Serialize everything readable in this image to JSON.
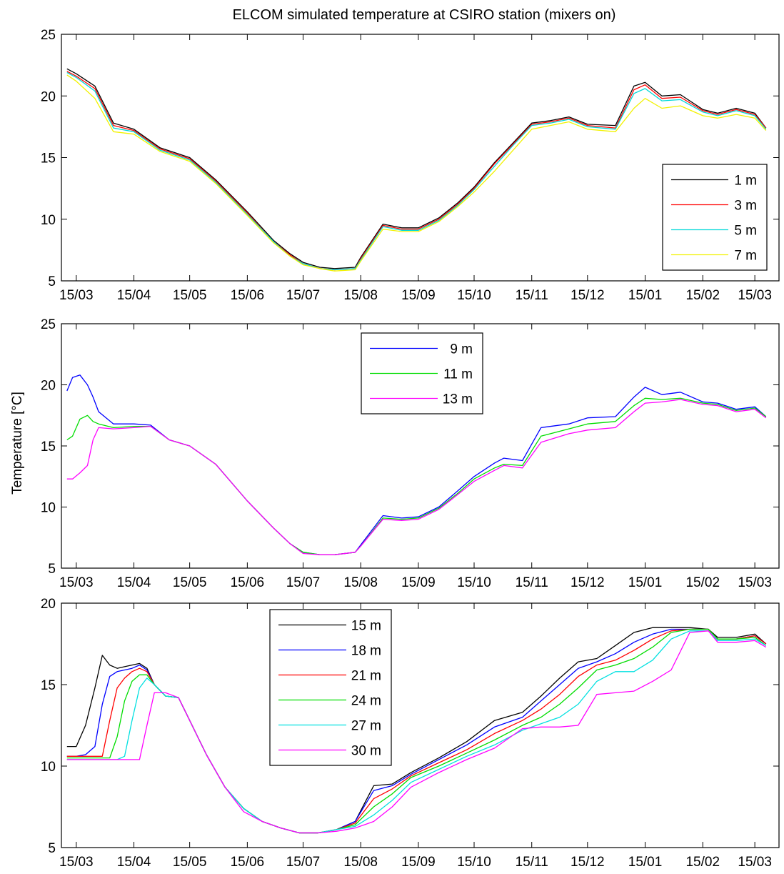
{
  "figure_title": "ELCOM simulated temperature at CSIRO station (mixers on)",
  "ylabel": "Temperature [°C]",
  "chart_data": [
    {
      "type": "line",
      "x_tick_labels": [
        "15/03",
        "15/04",
        "15/05",
        "15/06",
        "15/07",
        "15/08",
        "15/09",
        "15/10",
        "15/11",
        "15/12",
        "15/01",
        "15/02",
        "15/03"
      ],
      "x_tick_days": [
        0,
        31,
        61,
        92,
        122,
        153,
        184,
        214,
        245,
        275,
        306,
        337,
        365
      ],
      "xlim": [
        -8,
        378
      ],
      "ylim": [
        5,
        25
      ],
      "yticks": [
        5,
        10,
        15,
        20,
        25
      ],
      "legend_position": "right",
      "x": [
        -5,
        0,
        10,
        20,
        31,
        45,
        61,
        75,
        92,
        106,
        115,
        122,
        131,
        139,
        150,
        153,
        165,
        175,
        184,
        195,
        205,
        214,
        225,
        235,
        245,
        255,
        265,
        275,
        290,
        300,
        306,
        315,
        325,
        337,
        345,
        355,
        365,
        371
      ],
      "series": [
        {
          "name": "1 m",
          "color": "#000000",
          "values": [
            22.2,
            21.8,
            20.8,
            17.8,
            17.3,
            15.8,
            15.0,
            13.2,
            10.6,
            8.3,
            7.2,
            6.5,
            6.1,
            6.0,
            6.1,
            6.9,
            9.6,
            9.3,
            9.3,
            10.1,
            11.3,
            12.6,
            14.6,
            16.2,
            17.8,
            18.0,
            18.3,
            17.7,
            17.6,
            20.8,
            21.1,
            20.0,
            20.1,
            18.9,
            18.6,
            19.0,
            18.6,
            17.4
          ]
        },
        {
          "name": "3 m",
          "color": "#ff0000",
          "values": [
            22.0,
            21.6,
            20.6,
            17.6,
            17.2,
            15.7,
            14.9,
            13.1,
            10.5,
            8.2,
            7.1,
            6.4,
            6.0,
            5.9,
            6.0,
            6.8,
            9.5,
            9.2,
            9.2,
            10.0,
            11.2,
            12.5,
            14.5,
            16.1,
            17.7,
            17.9,
            18.2,
            17.6,
            17.4,
            20.5,
            20.9,
            19.8,
            19.9,
            18.8,
            18.5,
            18.9,
            18.5,
            17.4
          ]
        },
        {
          "name": "5 m",
          "color": "#00d8d8",
          "values": [
            21.9,
            21.5,
            20.4,
            17.4,
            17.1,
            15.6,
            14.8,
            13.0,
            10.4,
            8.2,
            7.0,
            6.4,
            6.0,
            5.9,
            6.0,
            6.7,
            9.4,
            9.1,
            9.1,
            9.9,
            11.1,
            12.4,
            14.3,
            16.0,
            17.6,
            17.8,
            18.1,
            17.5,
            17.3,
            20.2,
            20.6,
            19.6,
            19.7,
            18.7,
            18.4,
            18.8,
            18.4,
            17.3
          ]
        },
        {
          "name": "7 m",
          "color": "#f2f200",
          "values": [
            21.7,
            21.2,
            19.8,
            17.1,
            16.9,
            15.5,
            14.7,
            12.9,
            10.3,
            8.1,
            7.0,
            6.3,
            6.0,
            5.8,
            5.9,
            6.6,
            9.2,
            9.0,
            9.0,
            9.8,
            11.0,
            12.2,
            13.9,
            15.6,
            17.3,
            17.6,
            17.9,
            17.3,
            17.1,
            19.0,
            19.8,
            19.0,
            19.2,
            18.4,
            18.2,
            18.5,
            18.2,
            17.2
          ]
        }
      ]
    },
    {
      "type": "line",
      "x_tick_labels": [
        "15/03",
        "15/04",
        "15/05",
        "15/06",
        "15/07",
        "15/08",
        "15/09",
        "15/10",
        "15/11",
        "15/12",
        "15/01",
        "15/02",
        "15/03"
      ],
      "x_tick_days": [
        0,
        31,
        61,
        92,
        122,
        153,
        184,
        214,
        245,
        275,
        306,
        337,
        365
      ],
      "xlim": [
        -8,
        378
      ],
      "ylim": [
        5,
        25
      ],
      "yticks": [
        5,
        10,
        15,
        20,
        25
      ],
      "legend_position": "top-center",
      "x": [
        -5,
        -2,
        2,
        6,
        9,
        12,
        20,
        31,
        40,
        50,
        61,
        75,
        92,
        106,
        115,
        122,
        131,
        139,
        150,
        153,
        165,
        175,
        184,
        195,
        205,
        214,
        225,
        230,
        240,
        250,
        265,
        275,
        290,
        300,
        306,
        315,
        325,
        337,
        345,
        355,
        365,
        371
      ],
      "series": [
        {
          "name": "9 m",
          "color": "#0000ff",
          "values": [
            19.5,
            20.6,
            20.8,
            20.0,
            19.0,
            17.8,
            16.8,
            16.8,
            16.7,
            15.5,
            15.0,
            13.5,
            10.5,
            8.3,
            7.0,
            6.3,
            6.1,
            6.1,
            6.3,
            6.9,
            9.3,
            9.1,
            9.2,
            10.0,
            11.3,
            12.5,
            13.6,
            14.0,
            13.8,
            16.5,
            16.8,
            17.3,
            17.4,
            19.0,
            19.8,
            19.2,
            19.4,
            18.6,
            18.5,
            18.0,
            18.2,
            17.4
          ]
        },
        {
          "name": "11 m",
          "color": "#00dd00",
          "values": [
            15.5,
            15.8,
            17.2,
            17.5,
            17.0,
            16.8,
            16.5,
            16.6,
            16.6,
            15.5,
            15.0,
            13.5,
            10.5,
            8.3,
            7.0,
            6.3,
            6.1,
            6.1,
            6.3,
            6.8,
            9.1,
            9.0,
            9.1,
            9.9,
            11.1,
            12.3,
            13.2,
            13.5,
            13.4,
            15.8,
            16.4,
            16.8,
            17.0,
            18.3,
            18.9,
            18.8,
            18.9,
            18.5,
            18.4,
            17.9,
            18.1,
            17.4
          ]
        },
        {
          "name": "13 m",
          "color": "#ff00ff",
          "values": [
            12.3,
            12.3,
            12.8,
            13.4,
            15.5,
            16.5,
            16.4,
            16.5,
            16.6,
            15.5,
            15.0,
            13.5,
            10.5,
            8.3,
            7.0,
            6.2,
            6.1,
            6.1,
            6.3,
            6.8,
            9.0,
            8.9,
            9.0,
            9.8,
            11.0,
            12.1,
            13.0,
            13.4,
            13.2,
            15.3,
            16.0,
            16.3,
            16.5,
            17.8,
            18.5,
            18.6,
            18.8,
            18.4,
            18.3,
            17.8,
            18.0,
            17.3
          ]
        }
      ]
    },
    {
      "type": "line",
      "x_tick_labels": [
        "15/03",
        "15/04",
        "15/05",
        "15/06",
        "15/07",
        "15/08",
        "15/09",
        "15/10",
        "15/11",
        "15/12",
        "15/01",
        "15/02",
        "15/03"
      ],
      "x_tick_days": [
        0,
        31,
        61,
        92,
        122,
        153,
        184,
        214,
        245,
        275,
        306,
        337,
        365
      ],
      "xlim": [
        -8,
        378
      ],
      "ylim": [
        5,
        20
      ],
      "yticks": [
        5,
        10,
        15,
        20
      ],
      "legend_position": "top-left",
      "x": [
        -5,
        0,
        5,
        10,
        14,
        18,
        22,
        26,
        30,
        34,
        38,
        42,
        48,
        55,
        61,
        70,
        80,
        90,
        100,
        110,
        120,
        130,
        140,
        150,
        160,
        170,
        180,
        195,
        210,
        225,
        240,
        250,
        260,
        270,
        280,
        290,
        300,
        310,
        320,
        330,
        340,
        345,
        355,
        365,
        371
      ],
      "series": [
        {
          "name": "15 m",
          "color": "#000000",
          "values": [
            11.2,
            11.2,
            12.5,
            14.8,
            16.8,
            16.2,
            16.0,
            16.1,
            16.2,
            16.3,
            16.0,
            15.0,
            14.3,
            14.2,
            12.8,
            10.7,
            8.7,
            7.4,
            6.6,
            6.2,
            5.9,
            5.9,
            6.1,
            6.6,
            8.8,
            8.9,
            9.6,
            10.5,
            11.5,
            12.8,
            13.3,
            14.3,
            15.4,
            16.4,
            16.6,
            17.4,
            18.2,
            18.5,
            18.5,
            18.5,
            18.4,
            17.9,
            17.9,
            18.1,
            17.5
          ]
        },
        {
          "name": "18 m",
          "color": "#0000ff",
          "values": [
            10.6,
            10.6,
            10.7,
            11.2,
            13.8,
            15.5,
            15.8,
            15.9,
            16.0,
            16.2,
            15.9,
            15.0,
            14.3,
            14.2,
            12.8,
            10.7,
            8.7,
            7.4,
            6.6,
            6.2,
            5.9,
            5.9,
            6.1,
            6.6,
            8.5,
            8.8,
            9.5,
            10.4,
            11.3,
            12.4,
            13.0,
            14.0,
            15.0,
            16.0,
            16.4,
            16.9,
            17.6,
            18.1,
            18.4,
            18.4,
            18.4,
            17.8,
            17.8,
            18.0,
            17.5
          ]
        },
        {
          "name": "21 m",
          "color": "#ff0000",
          "values": [
            10.6,
            10.6,
            10.6,
            10.6,
            10.6,
            12.8,
            14.8,
            15.4,
            15.8,
            16.0,
            15.8,
            15.0,
            14.3,
            14.2,
            12.8,
            10.7,
            8.7,
            7.4,
            6.6,
            6.2,
            5.9,
            5.9,
            6.1,
            6.5,
            8.0,
            8.6,
            9.4,
            10.2,
            11.0,
            12.0,
            12.8,
            13.5,
            14.4,
            15.5,
            16.2,
            16.5,
            17.1,
            17.8,
            18.3,
            18.4,
            18.4,
            17.8,
            17.8,
            18.0,
            17.5
          ]
        },
        {
          "name": "24 m",
          "color": "#00dd00",
          "values": [
            10.5,
            10.5,
            10.5,
            10.5,
            10.5,
            10.5,
            11.8,
            14.0,
            15.2,
            15.6,
            15.6,
            15.0,
            14.3,
            14.2,
            12.8,
            10.7,
            8.7,
            7.4,
            6.6,
            6.2,
            5.9,
            5.9,
            6.1,
            6.4,
            7.5,
            8.3,
            9.3,
            10.0,
            10.8,
            11.6,
            12.5,
            13.0,
            13.8,
            14.8,
            15.9,
            16.2,
            16.6,
            17.3,
            18.2,
            18.4,
            18.4,
            17.8,
            17.8,
            17.9,
            17.4
          ]
        },
        {
          "name": "27 m",
          "color": "#00e0e0",
          "values": [
            10.4,
            10.4,
            10.4,
            10.4,
            10.4,
            10.4,
            10.4,
            10.6,
            12.8,
            14.8,
            15.4,
            15.0,
            14.3,
            14.2,
            12.8,
            10.7,
            8.7,
            7.4,
            6.6,
            6.2,
            5.9,
            5.9,
            6.1,
            6.3,
            7.0,
            7.9,
            9.0,
            9.8,
            10.6,
            11.3,
            12.2,
            12.6,
            13.0,
            13.8,
            15.2,
            15.8,
            15.8,
            16.5,
            17.8,
            18.3,
            18.3,
            17.7,
            17.7,
            17.8,
            17.4
          ]
        },
        {
          "name": "30 m",
          "color": "#ff00ff",
          "values": [
            10.4,
            10.4,
            10.4,
            10.4,
            10.4,
            10.4,
            10.4,
            10.4,
            10.4,
            10.4,
            12.5,
            14.5,
            14.5,
            14.2,
            12.8,
            10.7,
            8.7,
            7.2,
            6.6,
            6.2,
            5.9,
            5.9,
            6.0,
            6.2,
            6.6,
            7.5,
            8.7,
            9.6,
            10.4,
            11.1,
            12.3,
            12.4,
            12.4,
            12.5,
            14.4,
            14.5,
            14.6,
            15.2,
            15.9,
            18.2,
            18.3,
            17.6,
            17.6,
            17.7,
            17.3
          ]
        }
      ]
    }
  ]
}
